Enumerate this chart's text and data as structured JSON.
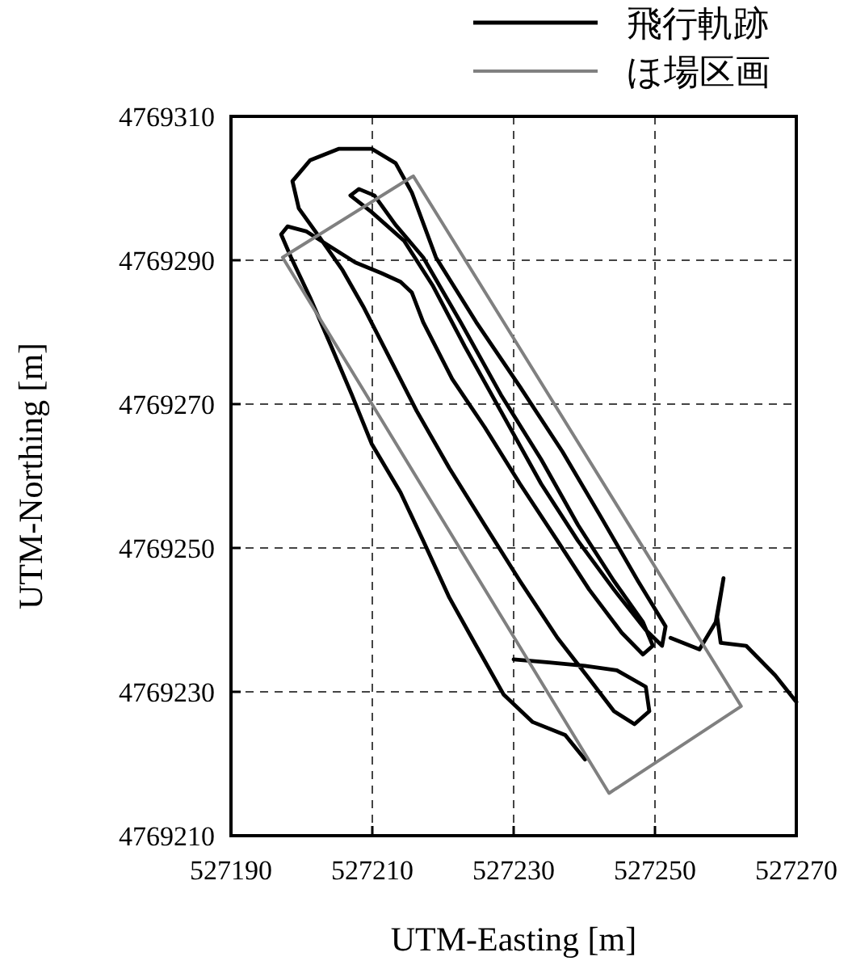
{
  "chart_data": {
    "type": "line",
    "xlabel": "UTM-Easting [m]",
    "ylabel": "UTM-Northing [m]",
    "xlim": [
      527190,
      527270
    ],
    "ylim": [
      4769210,
      4769310
    ],
    "xticks": [
      527190,
      527210,
      527230,
      527250,
      527270
    ],
    "yticks": [
      4769210,
      4769230,
      4769250,
      4769270,
      4769290,
      4769310
    ],
    "grid": true,
    "legend": "top right",
    "series": [
      {
        "name": "飛行軌跡",
        "color": "#000000",
        "x": [
          527240.1,
          527237.3,
          527232.7,
          527228.6,
          527224.7,
          527220.9,
          527217.2,
          527214.0,
          527209.9,
          527207.1,
          527204.2,
          527201.2,
          527198.5,
          527197.1,
          527198.0,
          527200.7,
          527204.2,
          527207.6,
          527211.3,
          527214.0,
          527215.6,
          527217.2,
          527221.3,
          527225.9,
          527230.9,
          527236.2,
          527240.7,
          527245.3,
          527248.3,
          527249.7,
          527248.3,
          527244.2,
          527239.1,
          527233.9,
          527228.2,
          527222.5,
          527217.2,
          527213.3,
          527210.3,
          527208.1,
          527206.9,
          527209.9,
          527214.5,
          527218.6,
          527223.1,
          527228.2,
          527233.9,
          527239.1,
          527244.2,
          527248.7,
          527251.0,
          527251.5,
          527247.6,
          527242.3,
          527236.9,
          527230.9,
          527224.7,
          527219.0,
          527215.6,
          527213.3,
          527209.9,
          527205.3,
          527201.2,
          527198.7,
          527199.6,
          527202.6,
          527205.8,
          527208.7,
          527212.2,
          527216.3,
          527220.9,
          527225.9,
          527230.9,
          527236.2,
          527240.7,
          527244.2,
          527247.1,
          527249.2,
          527248.7,
          527244.6,
          527240.1,
          527235.0,
          527230.0,
          null,
          527252.2,
          527256.3,
          527258.6,
          527259.7,
          527258.8,
          527259.3,
          527262.9,
          527267.0,
          527270.0
        ],
        "values": [
          4769220.6,
          4769224.0,
          4769225.8,
          4769229.6,
          4769236.4,
          4769243.1,
          4769251.0,
          4769257.7,
          4769264.5,
          4769271.3,
          4769278.0,
          4769284.8,
          4769290.4,
          4769293.6,
          4769294.7,
          4769294.0,
          4769291.8,
          4769289.7,
          4769288.2,
          4769287.0,
          4769285.5,
          4769281.4,
          4769273.5,
          4769266.8,
          4769258.9,
          4769251.0,
          4769244.2,
          4769238.2,
          4769235.2,
          4769236.4,
          4769239.7,
          4769245.4,
          4769253.2,
          4769262.3,
          4769271.3,
          4769281.4,
          4769290.4,
          4769294.9,
          4769299.0,
          4769299.9,
          4769299.0,
          4769296.7,
          4769292.7,
          4769286.4,
          4769278.0,
          4769269.0,
          4769258.9,
          4769251.0,
          4769244.2,
          4769238.6,
          4769236.4,
          4769239.1,
          4769245.4,
          4769254.4,
          4769263.4,
          4769272.4,
          4769281.4,
          4769290.4,
          4769299.4,
          4769303.5,
          4769305.5,
          4769305.5,
          4769303.9,
          4769301.0,
          4769297.2,
          4769293.1,
          4769288.6,
          4769283.6,
          4769276.9,
          4769269.0,
          4769261.1,
          4769253.2,
          4769245.4,
          4769237.5,
          4769231.8,
          4769227.3,
          4769225.5,
          4769227.3,
          4769230.7,
          4769233.0,
          4769233.6,
          4769234.1,
          4769234.5,
          null,
          4769237.5,
          4769235.9,
          4769239.7,
          4769245.8,
          4769240.4,
          4769236.8,
          4769236.4,
          4769232.3,
          4769228.6
        ]
      },
      {
        "name": "ほ場区画",
        "color": "#808080",
        "x": [
          527197.3,
          527215.8,
          527262.2,
          null,
          527197.3,
          527243.5,
          527262.2
        ],
        "values": [
          4769290.4,
          4769301.7,
          4769228.0,
          null,
          4769290.4,
          4769215.9,
          4769228.0
        ]
      }
    ]
  }
}
